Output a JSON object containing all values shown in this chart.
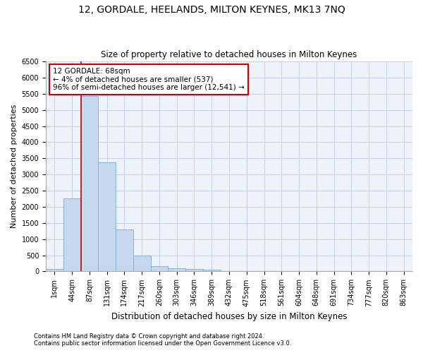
{
  "title": "12, GORDALE, HEELANDS, MILTON KEYNES, MK13 7NQ",
  "subtitle": "Size of property relative to detached houses in Milton Keynes",
  "xlabel": "Distribution of detached houses by size in Milton Keynes",
  "ylabel": "Number of detached properties",
  "footnote1": "Contains HM Land Registry data © Crown copyright and database right 2024.",
  "footnote2": "Contains public sector information licensed under the Open Government Licence v3.0.",
  "bar_labels": [
    "1sqm",
    "44sqm",
    "87sqm",
    "131sqm",
    "174sqm",
    "217sqm",
    "260sqm",
    "303sqm",
    "346sqm",
    "389sqm",
    "432sqm",
    "475sqm",
    "518sqm",
    "561sqm",
    "604sqm",
    "648sqm",
    "691sqm",
    "734sqm",
    "777sqm",
    "820sqm",
    "863sqm"
  ],
  "bar_values": [
    70,
    2270,
    5430,
    3370,
    1290,
    480,
    160,
    90,
    65,
    45,
    0,
    0,
    0,
    0,
    0,
    0,
    0,
    0,
    0,
    0,
    0
  ],
  "bar_color": "#c5d8f0",
  "bar_edge_color": "#7aadd4",
  "ylim": [
    0,
    6500
  ],
  "yticks": [
    0,
    500,
    1000,
    1500,
    2000,
    2500,
    3000,
    3500,
    4000,
    4500,
    5000,
    5500,
    6000,
    6500
  ],
  "vline_color": "#cc0000",
  "annotation_text": "12 GORDALE: 68sqm\n← 4% of detached houses are smaller (537)\n96% of semi-detached houses are larger (12,541) →",
  "bg_color": "#eef2fb",
  "grid_color": "#c8d0e8",
  "title_fontsize": 10,
  "subtitle_fontsize": 8.5,
  "ylabel_fontsize": 8,
  "xlabel_fontsize": 8.5,
  "tick_fontsize": 7,
  "footnote_fontsize": 6
}
